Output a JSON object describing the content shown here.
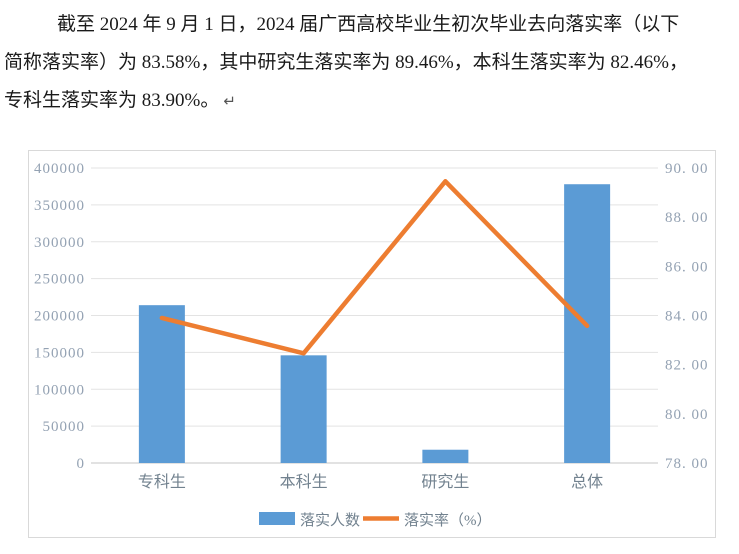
{
  "paragraph": {
    "lines": [
      "截至 2024 年 9 月 1 日，2024 届广西高校毕业生初次毕业去向落实率（以下",
      "简称落实率）为 83.58%，其中研究生落实率为 89.46%，本科生落实率为 82.46%，",
      "专科生落实率为 83.90%。"
    ],
    "paragraph_mark": "↵"
  },
  "chart_data": {
    "type": "combo-bar-line",
    "title": "",
    "categories": [
      "专科生",
      "本科生",
      "研究生",
      "总体"
    ],
    "series": [
      {
        "name": "落实人数",
        "type": "bar",
        "axis": "left",
        "color": "#5B9BD5",
        "values": [
          214000,
          146000,
          18000,
          378000
        ]
      },
      {
        "name": "落实率（%）",
        "type": "line",
        "axis": "right",
        "color": "#ED7D31",
        "values": [
          83.9,
          82.46,
          89.46,
          83.58
        ]
      }
    ],
    "left_axis": {
      "min": 0,
      "max": 400000,
      "step": 50000,
      "tick_labels": [
        "400000",
        "350000",
        "300000",
        "250000",
        "200000",
        "150000",
        "100000",
        "50000",
        "0"
      ]
    },
    "right_axis": {
      "min": 78,
      "max": 90,
      "step": 2,
      "tick_labels": [
        "90. 00",
        "88. 00",
        "86. 00",
        "84. 00",
        "82. 00",
        "80. 00",
        "78. 00"
      ]
    },
    "legend": {
      "position": "bottom",
      "items": [
        {
          "label": "落实人数",
          "swatch": "bar",
          "color": "#5B9BD5"
        },
        {
          "label": "落实率（%）",
          "swatch": "line",
          "color": "#ED7D31"
        }
      ]
    },
    "grid": true,
    "colors": {
      "grid": "#e3e3e3",
      "axis_line": "#c6c6c6",
      "tick_text": "#94a2b3",
      "category_text": "#72828f",
      "border": "#d9d9d9"
    }
  }
}
